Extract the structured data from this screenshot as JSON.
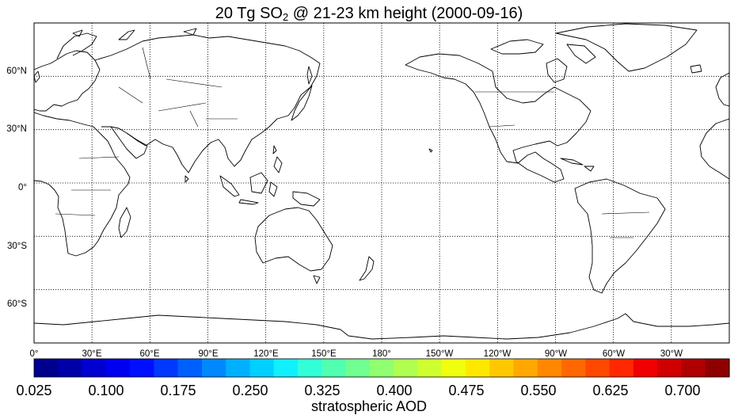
{
  "title": {
    "prefix": "20 Tg SO",
    "subscript": "2",
    "suffix": " @ 21-23 km height (2000-09-16)"
  },
  "map": {
    "projection": "equirectangular",
    "central_longitude": 180,
    "lat_range": [
      -90,
      90
    ],
    "lon_range": [
      0,
      360
    ],
    "latitude_labels": [
      "60°N",
      "30°N",
      "0°",
      "30°S",
      "60°S"
    ],
    "longitude_labels": [
      "0°",
      "30°E",
      "60°E",
      "90°E",
      "120°E",
      "150°E",
      "180°",
      "150°W",
      "120°W",
      "90°W",
      "60°W",
      "30°W"
    ],
    "grid": "dotted",
    "features": [
      "coastlines",
      "country-borders"
    ]
  },
  "colorbar": {
    "tick_labels": [
      "0.025",
      "0.100",
      "0.175",
      "0.250",
      "0.325",
      "0.400",
      "0.475",
      "0.550",
      "0.625",
      "0.700"
    ],
    "range": [
      0.025,
      0.745
    ],
    "step": 0.025,
    "colormap": "jet",
    "colors": [
      "#00008f",
      "#0000a8",
      "#0000d0",
      "#0000f0",
      "#0010ff",
      "#0038ff",
      "#0060ff",
      "#0088ff",
      "#00b0ff",
      "#00d0ff",
      "#10f0ff",
      "#30ffd8",
      "#50ffb0",
      "#70ff90",
      "#90ff70",
      "#b0ff50",
      "#d0ff30",
      "#f0ff10",
      "#ffe800",
      "#ffc800",
      "#ffa800",
      "#ff8800",
      "#ff6800",
      "#ff4800",
      "#ff2800",
      "#f00000",
      "#d00000",
      "#b00000",
      "#8f0000"
    ],
    "label": "stratospheric AOD"
  }
}
